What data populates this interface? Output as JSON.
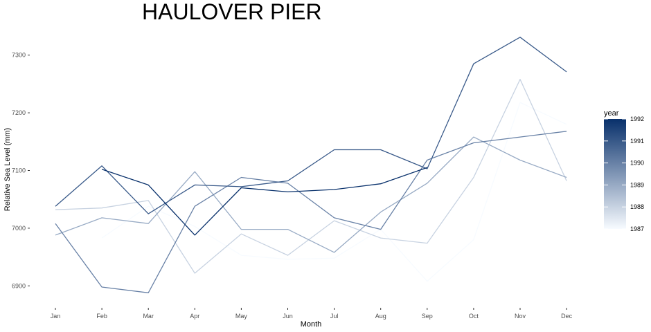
{
  "chart_data": {
    "type": "line",
    "title": "HAULOVER PIER",
    "xlabel": "Month",
    "ylabel": "Relative Sea Level (mm)",
    "categories": [
      "Jan",
      "Feb",
      "Mar",
      "Apr",
      "May",
      "Jun",
      "Jul",
      "Aug",
      "Sep",
      "Oct",
      "Nov",
      "Dec"
    ],
    "ylim": [
      6868,
      7338
    ],
    "yticks": [
      6900,
      7000,
      7100,
      7200,
      7300
    ],
    "grid": false,
    "legend": {
      "title": "year",
      "position": "right",
      "min": 1987,
      "max": 1992,
      "labels": [
        "1992",
        "1991",
        "1990",
        "1989",
        "1988",
        "1987"
      ],
      "low_color": "#f7fbff",
      "high_color": "#08306b"
    },
    "series": [
      {
        "year": 1987,
        "values": [
          null,
          6983,
          7038,
          7003,
          6953,
          6946,
          6948,
          6998,
          6908,
          6980,
          7218,
          7180
        ]
      },
      {
        "year": 1988,
        "values": [
          7032,
          7035,
          7048,
          6922,
          6990,
          6953,
          7013,
          6983,
          6974,
          7088,
          7258,
          7082
        ]
      },
      {
        "year": 1989,
        "values": [
          6988,
          7018,
          7008,
          7098,
          6998,
          6998,
          6958,
          7028,
          7078,
          7158,
          7118,
          7088
        ]
      },
      {
        "year": 1990,
        "values": [
          7008,
          6898,
          6888,
          7038,
          7088,
          7078,
          7018,
          6998,
          7118,
          7148,
          7158,
          7168
        ]
      },
      {
        "year": 1991,
        "values": [
          7038,
          7108,
          7025,
          7075,
          7072,
          7082,
          7136,
          7136,
          7103,
          7285,
          7331,
          7271
        ]
      },
      {
        "year": 1992,
        "values": [
          null,
          7102,
          7075,
          6988,
          7070,
          7063,
          7067,
          7077,
          7105,
          null,
          null,
          null
        ]
      }
    ]
  }
}
